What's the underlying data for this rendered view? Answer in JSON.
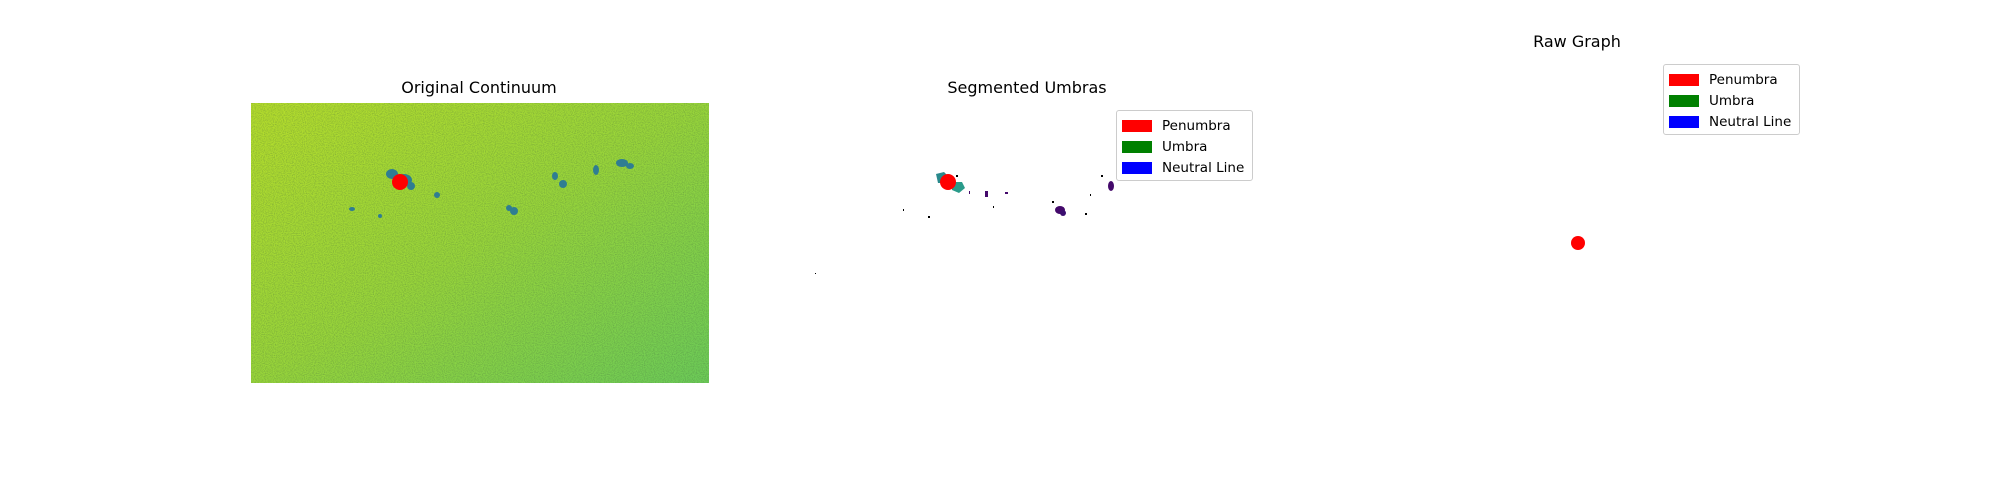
{
  "figure": {
    "panels": [
      {
        "title": "Original Continuum"
      },
      {
        "title": "Segmented Umbras"
      },
      {
        "title": "Raw Graph"
      }
    ],
    "legend": [
      {
        "label": "Penumbra",
        "color": "#ff0000"
      },
      {
        "label": "Umbra",
        "color": "#008000"
      },
      {
        "label": "Neutral Line",
        "color": "#0000ff"
      }
    ]
  },
  "chart_data": [
    {
      "type": "heatmap",
      "title": "Original Continuum",
      "colormap": "viridis",
      "markers": [
        {
          "label": "Penumbra",
          "color": "#ff0000"
        }
      ]
    },
    {
      "type": "heatmap",
      "title": "Segmented Umbras",
      "colormap": "viridis",
      "legend": [
        "Penumbra",
        "Umbra",
        "Neutral Line"
      ],
      "markers": [
        {
          "label": "Penumbra",
          "color": "#ff0000"
        }
      ]
    },
    {
      "type": "scatter",
      "title": "Raw Graph",
      "legend": [
        "Penumbra",
        "Umbra",
        "Neutral Line"
      ],
      "points": [
        {
          "label": "Penumbra",
          "color": "#ff0000"
        }
      ]
    }
  ]
}
